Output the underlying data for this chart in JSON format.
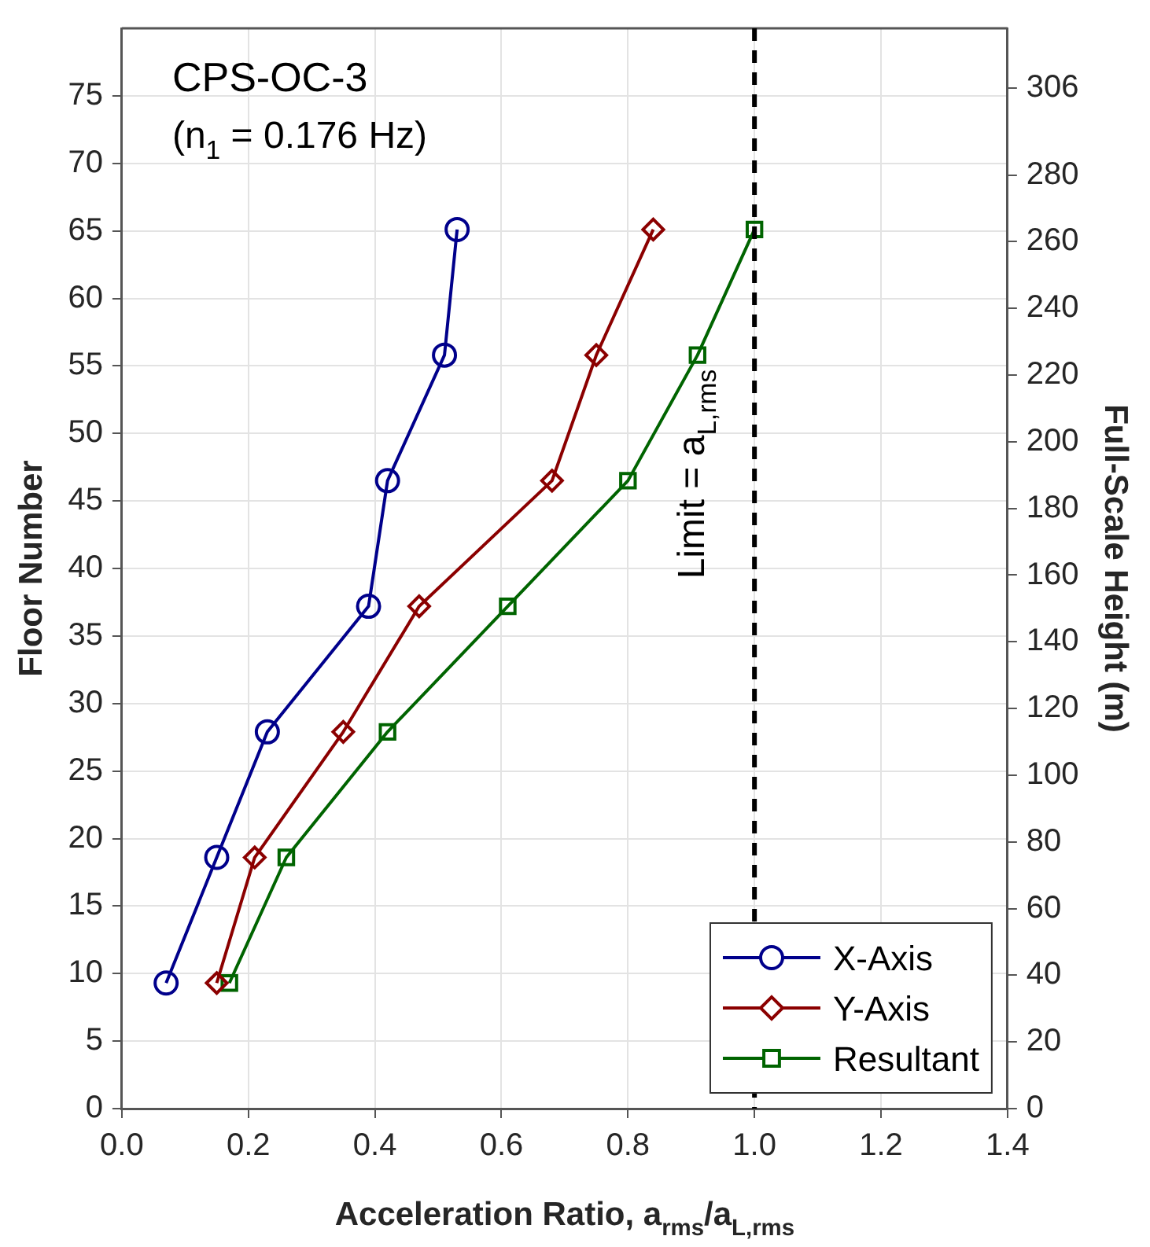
{
  "chart_data": {
    "type": "line",
    "title": "CPS-OC-3",
    "subtitle": "(n$_{1}$ = 0.176 Hz)",
    "xlabel": "Acceleration Ratio, a$_{rms}$/a$_{L,rms}$",
    "ylabel": "Floor Number",
    "y2label": "Full-Scale Height (m)",
    "series": [
      {
        "name": "X-Axis",
        "color": "#00008b",
        "marker": "circle",
        "x": [
          0.07,
          0.15,
          0.23,
          0.39,
          0.42,
          0.51,
          0.53
        ],
        "values": [
          9.3,
          18.6,
          27.9,
          37.2,
          46.5,
          55.8,
          65.1
        ]
      },
      {
        "name": "Y-Axis",
        "color": "#8b0000",
        "marker": "diamond",
        "x": [
          0.15,
          0.21,
          0.35,
          0.47,
          0.68,
          0.75,
          0.84
        ],
        "values": [
          9.3,
          18.6,
          27.9,
          37.2,
          46.5,
          55.8,
          65.1
        ]
      },
      {
        "name": "Resultant",
        "color": "#006400",
        "marker": "square",
        "x": [
          0.17,
          0.26,
          0.42,
          0.61,
          0.8,
          0.91,
          1.0
        ],
        "values": [
          9.3,
          18.6,
          27.9,
          37.2,
          46.5,
          55.8,
          65.1
        ]
      }
    ],
    "xlim": [
      0,
      1.4
    ],
    "xticks": [
      {
        "value": 0,
        "label": "0.0"
      },
      0.2,
      0.4,
      0.6,
      0.8,
      {
        "value": 1,
        "label": "1.0"
      },
      1.2,
      1.4
    ],
    "ylim": [
      0,
      80
    ],
    "yticks": [
      0,
      5,
      10,
      15,
      20,
      25,
      30,
      35,
      40,
      45,
      50,
      55,
      60,
      65,
      70,
      75
    ],
    "y2lim": [
      0,
      324
    ],
    "y2ticks": [
      0,
      20,
      40,
      60,
      80,
      100,
      120,
      140,
      160,
      180,
      200,
      220,
      240,
      260,
      280,
      306
    ],
    "ref_lines": [
      {
        "axis": "x",
        "value": 1,
        "label": "Limit = a$_{L,rms}$",
        "color": "#000000",
        "line_style": "dashed"
      }
    ],
    "grid": true,
    "legend": "bottom right",
    "line_style": "solid"
  }
}
